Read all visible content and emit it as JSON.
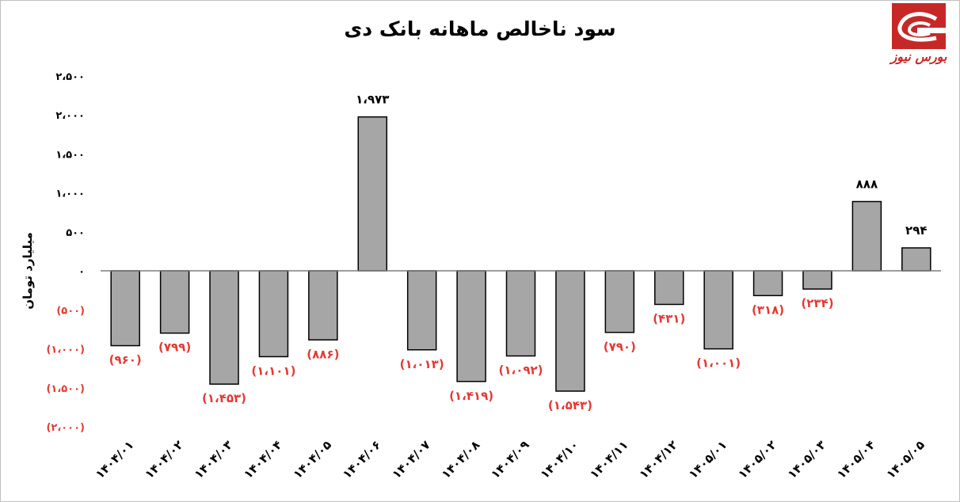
{
  "title": "سود ناخالص ماهانه بانک دی",
  "logo_text": "بورس نیوز",
  "logo_icon": "bourse-news-logo-icon",
  "colors": {
    "bar_fill": "#a6a6a6",
    "bar_stroke": "#000000",
    "negative_label": "#e53935",
    "positive_label": "#000000",
    "axis": "#000000",
    "logo_red": "#c62828"
  },
  "chart_data": {
    "type": "bar",
    "title": "سود ناخالص ماهانه بانک دی",
    "ylabel": "میلیارد تومان",
    "xlabel": "",
    "ylim": [
      -2000,
      2500
    ],
    "grid": false,
    "legend": "none",
    "categories": [
      "۱۴۰۴/۰۱",
      "۱۴۰۴/۰۲",
      "۱۴۰۴/۰۳",
      "۱۴۰۴/۰۴",
      "۱۴۰۴/۰۵",
      "۱۴۰۴/۰۶",
      "۱۴۰۴/۰۷",
      "۱۴۰۴/۰۸",
      "۱۴۰۴/۰۹",
      "۱۴۰۴/۱۰",
      "۱۴۰۴/۱۱",
      "۱۴۰۴/۱۲",
      "۱۴۰۵/۰۱",
      "۱۴۰۵/۰۲",
      "۱۴۰۵/۰۳",
      "۱۴۰۵/۰۴",
      "۱۴۰۵/۰۵"
    ],
    "values": [
      -960,
      -799,
      -1453,
      -1101,
      -886,
      1973,
      -1013,
      -1419,
      -1092,
      -1543,
      -790,
      -431,
      -1001,
      -318,
      -234,
      888,
      294
    ],
    "data_labels": [
      "(۹۶۰)",
      "(۷۹۹)",
      "(۱،۴۵۳)",
      "(۱،۱۰۱)",
      "(۸۸۶)",
      "۱،۹۷۳",
      "(۱،۰۱۳)",
      "(۱،۴۱۹)",
      "(۱،۰۹۲)",
      "(۱،۵۴۳)",
      "(۷۹۰)",
      "(۴۳۱)",
      "(۱،۰۰۱)",
      "(۳۱۸)",
      "(۲۳۴)",
      "۸۸۸",
      "۲۹۴"
    ],
    "yticks": [
      {
        "value": 2500,
        "label": "۲،۵۰۰"
      },
      {
        "value": 2000,
        "label": "۲،۰۰۰"
      },
      {
        "value": 1500,
        "label": "۱،۵۰۰"
      },
      {
        "value": 1000,
        "label": "۱،۰۰۰"
      },
      {
        "value": 500,
        "label": "۵۰۰"
      },
      {
        "value": 0,
        "label": "۰"
      },
      {
        "value": -500,
        "label": "(۵۰۰)"
      },
      {
        "value": -1000,
        "label": "(۱،۰۰۰)"
      },
      {
        "value": -1500,
        "label": "(۱،۵۰۰)"
      },
      {
        "value": -2000,
        "label": "(۲،۰۰۰)"
      }
    ]
  }
}
